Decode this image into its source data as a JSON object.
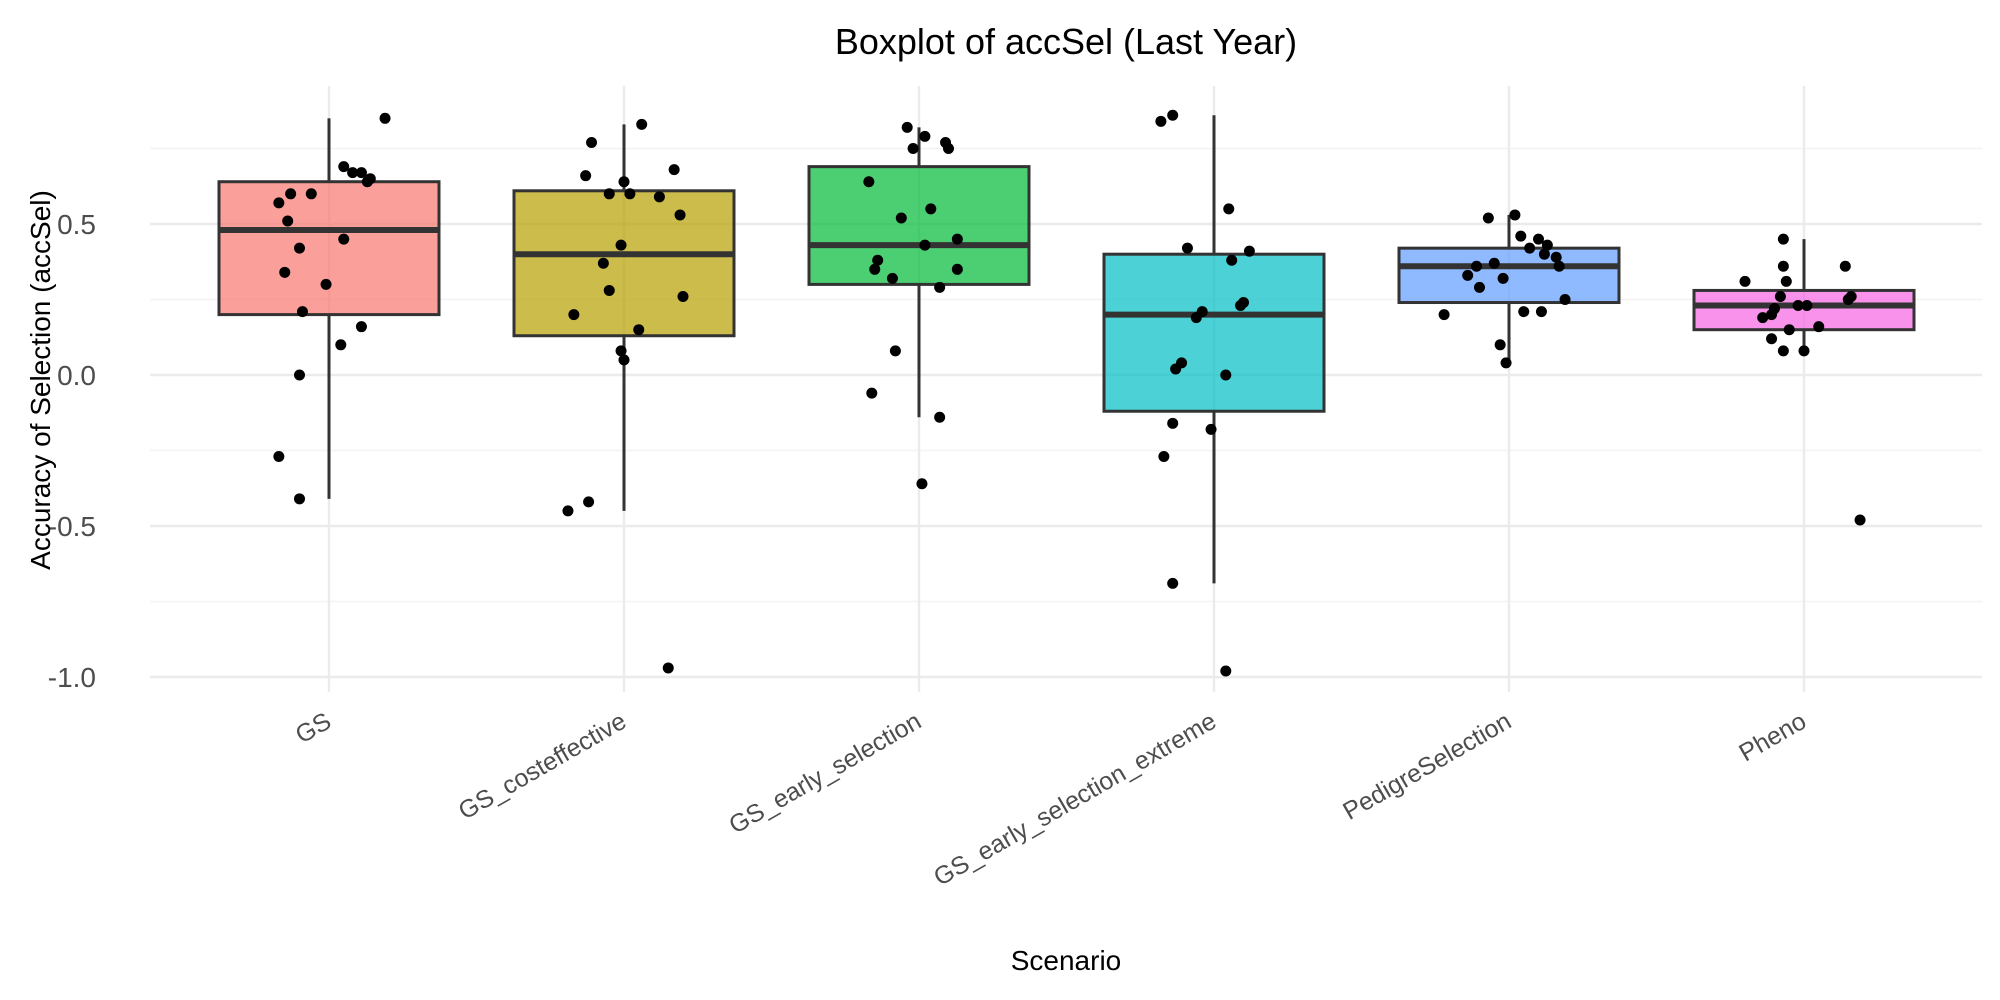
{
  "chart_data": {
    "type": "boxplot",
    "title": "Boxplot of accSel (Last Year)",
    "xlabel": "Scenario",
    "ylabel": "Accuracy of Selection (accSel)",
    "ylim": [
      -1.05,
      0.95
    ],
    "y_ticks": [
      -1.0,
      -0.5,
      0.0,
      0.5
    ],
    "y_tick_labels": [
      "-1.0",
      "-0.5",
      "0.0",
      "0.5"
    ],
    "grid": true,
    "legend": "none",
    "categories": [
      "GS",
      "GS_costeffective",
      "GS_early_selection",
      "GS_early_selection_extreme",
      "PedigreSelection",
      "Pheno"
    ],
    "colors": [
      "#F8766D",
      "#B79F00",
      "#00BA38",
      "#00BFC4",
      "#619CFF",
      "#F564E3"
    ],
    "boxes": [
      {
        "category": "GS",
        "whisker_low": -0.41,
        "q1": 0.2,
        "median": 0.48,
        "q3": 0.64,
        "whisker_high": 0.85
      },
      {
        "category": "GS_costeffective",
        "whisker_low": -0.45,
        "q1": 0.13,
        "median": 0.4,
        "q3": 0.61,
        "whisker_high": 0.83
      },
      {
        "category": "GS_early_selection",
        "whisker_low": -0.14,
        "q1": 0.3,
        "median": 0.43,
        "q3": 0.69,
        "whisker_high": 0.82
      },
      {
        "category": "GS_early_selection_extreme",
        "whisker_low": -0.69,
        "q1": -0.12,
        "median": 0.2,
        "q3": 0.4,
        "whisker_high": 0.86
      },
      {
        "category": "PedigreSelection",
        "whisker_low": 0.04,
        "q1": 0.24,
        "median": 0.36,
        "q3": 0.42,
        "whisker_high": 0.53
      },
      {
        "category": "Pheno",
        "whisker_low": 0.08,
        "q1": 0.15,
        "median": 0.23,
        "q3": 0.28,
        "whisker_high": 0.45
      }
    ],
    "points": [
      [
        [
          -0.17,
          0.57
        ],
        [
          -0.13,
          0.6
        ],
        [
          -0.06,
          0.6
        ],
        [
          -0.14,
          0.51
        ],
        [
          -0.1,
          0.42
        ],
        [
          -0.15,
          0.34
        ],
        [
          -0.09,
          0.21
        ],
        [
          -0.01,
          0.3
        ],
        [
          0.04,
          0.1
        ],
        [
          0.11,
          0.16
        ],
        [
          0.05,
          0.45
        ],
        [
          0.05,
          0.69
        ],
        [
          0.08,
          0.67
        ],
        [
          0.11,
          0.67
        ],
        [
          0.14,
          0.65
        ],
        [
          0.13,
          0.64
        ],
        [
          0.19,
          0.85
        ],
        [
          -0.1,
          0.0
        ],
        [
          -0.17,
          -0.27
        ],
        [
          -0.1,
          -0.41
        ]
      ],
      [
        [
          -0.11,
          0.77
        ],
        [
          -0.13,
          0.66
        ],
        [
          -0.07,
          0.37
        ],
        [
          -0.17,
          0.2
        ],
        [
          -0.05,
          0.28
        ],
        [
          -0.01,
          0.08
        ],
        [
          0.0,
          0.05
        ],
        [
          0.05,
          0.15
        ],
        [
          -0.01,
          0.43
        ],
        [
          -0.05,
          0.6
        ],
        [
          0.02,
          0.6
        ],
        [
          0.0,
          0.64
        ],
        [
          0.06,
          0.83
        ],
        [
          0.12,
          0.59
        ],
        [
          0.17,
          0.68
        ],
        [
          0.19,
          0.53
        ],
        [
          0.2,
          0.26
        ],
        [
          -0.12,
          -0.42
        ],
        [
          -0.19,
          -0.45
        ],
        [
          0.15,
          -0.97
        ]
      ],
      [
        [
          -0.17,
          0.64
        ],
        [
          -0.14,
          0.38
        ],
        [
          -0.15,
          0.35
        ],
        [
          -0.09,
          0.32
        ],
        [
          -0.06,
          0.52
        ],
        [
          0.02,
          0.43
        ],
        [
          0.04,
          0.55
        ],
        [
          0.07,
          0.29
        ],
        [
          0.13,
          0.45
        ],
        [
          0.13,
          0.35
        ],
        [
          -0.04,
          0.82
        ],
        [
          0.02,
          0.79
        ],
        [
          0.09,
          0.77
        ],
        [
          0.1,
          0.75
        ],
        [
          -0.02,
          0.75
        ],
        [
          -0.08,
          0.08
        ],
        [
          0.07,
          -0.14
        ],
        [
          -0.16,
          -0.06
        ],
        [
          0.01,
          -0.36
        ]
      ],
      [
        [
          -0.18,
          0.84
        ],
        [
          -0.14,
          0.86
        ],
        [
          -0.09,
          0.42
        ],
        [
          0.05,
          0.55
        ],
        [
          0.06,
          0.38
        ],
        [
          0.09,
          0.23
        ],
        [
          0.12,
          0.41
        ],
        [
          0.1,
          0.24
        ],
        [
          -0.04,
          0.21
        ],
        [
          -0.06,
          0.19
        ],
        [
          -0.11,
          0.04
        ],
        [
          -0.13,
          0.02
        ],
        [
          0.04,
          0.0
        ],
        [
          -0.14,
          -0.16
        ],
        [
          -0.17,
          -0.27
        ],
        [
          -0.01,
          -0.18
        ],
        [
          -0.14,
          -0.69
        ],
        [
          0.04,
          -0.98
        ]
      ],
      [
        [
          -0.22,
          0.2
        ],
        [
          -0.14,
          0.33
        ],
        [
          -0.11,
          0.36
        ],
        [
          -0.1,
          0.29
        ],
        [
          -0.05,
          0.37
        ],
        [
          -0.02,
          0.32
        ],
        [
          -0.03,
          0.1
        ],
        [
          -0.07,
          0.52
        ],
        [
          0.02,
          0.53
        ],
        [
          0.04,
          0.46
        ],
        [
          0.07,
          0.42
        ],
        [
          0.1,
          0.45
        ],
        [
          0.12,
          0.4
        ],
        [
          0.13,
          0.43
        ],
        [
          0.16,
          0.39
        ],
        [
          0.17,
          0.36
        ],
        [
          0.19,
          0.25
        ],
        [
          0.05,
          0.21
        ],
        [
          0.11,
          0.21
        ],
        [
          -0.01,
          0.04
        ]
      ],
      [
        [
          -0.2,
          0.31
        ],
        [
          -0.14,
          0.19
        ],
        [
          -0.11,
          0.2
        ],
        [
          -0.1,
          0.22
        ],
        [
          -0.08,
          0.26
        ],
        [
          -0.06,
          0.31
        ],
        [
          -0.07,
          0.36
        ],
        [
          -0.11,
          0.12
        ],
        [
          -0.05,
          0.15
        ],
        [
          -0.07,
          0.08
        ],
        [
          -0.02,
          0.23
        ],
        [
          0.01,
          0.23
        ],
        [
          0.05,
          0.16
        ],
        [
          0.0,
          0.08
        ],
        [
          -0.07,
          0.45
        ],
        [
          0.14,
          0.36
        ],
        [
          0.15,
          0.25
        ],
        [
          0.16,
          0.26
        ],
        [
          0.19,
          -0.48
        ]
      ]
    ]
  }
}
